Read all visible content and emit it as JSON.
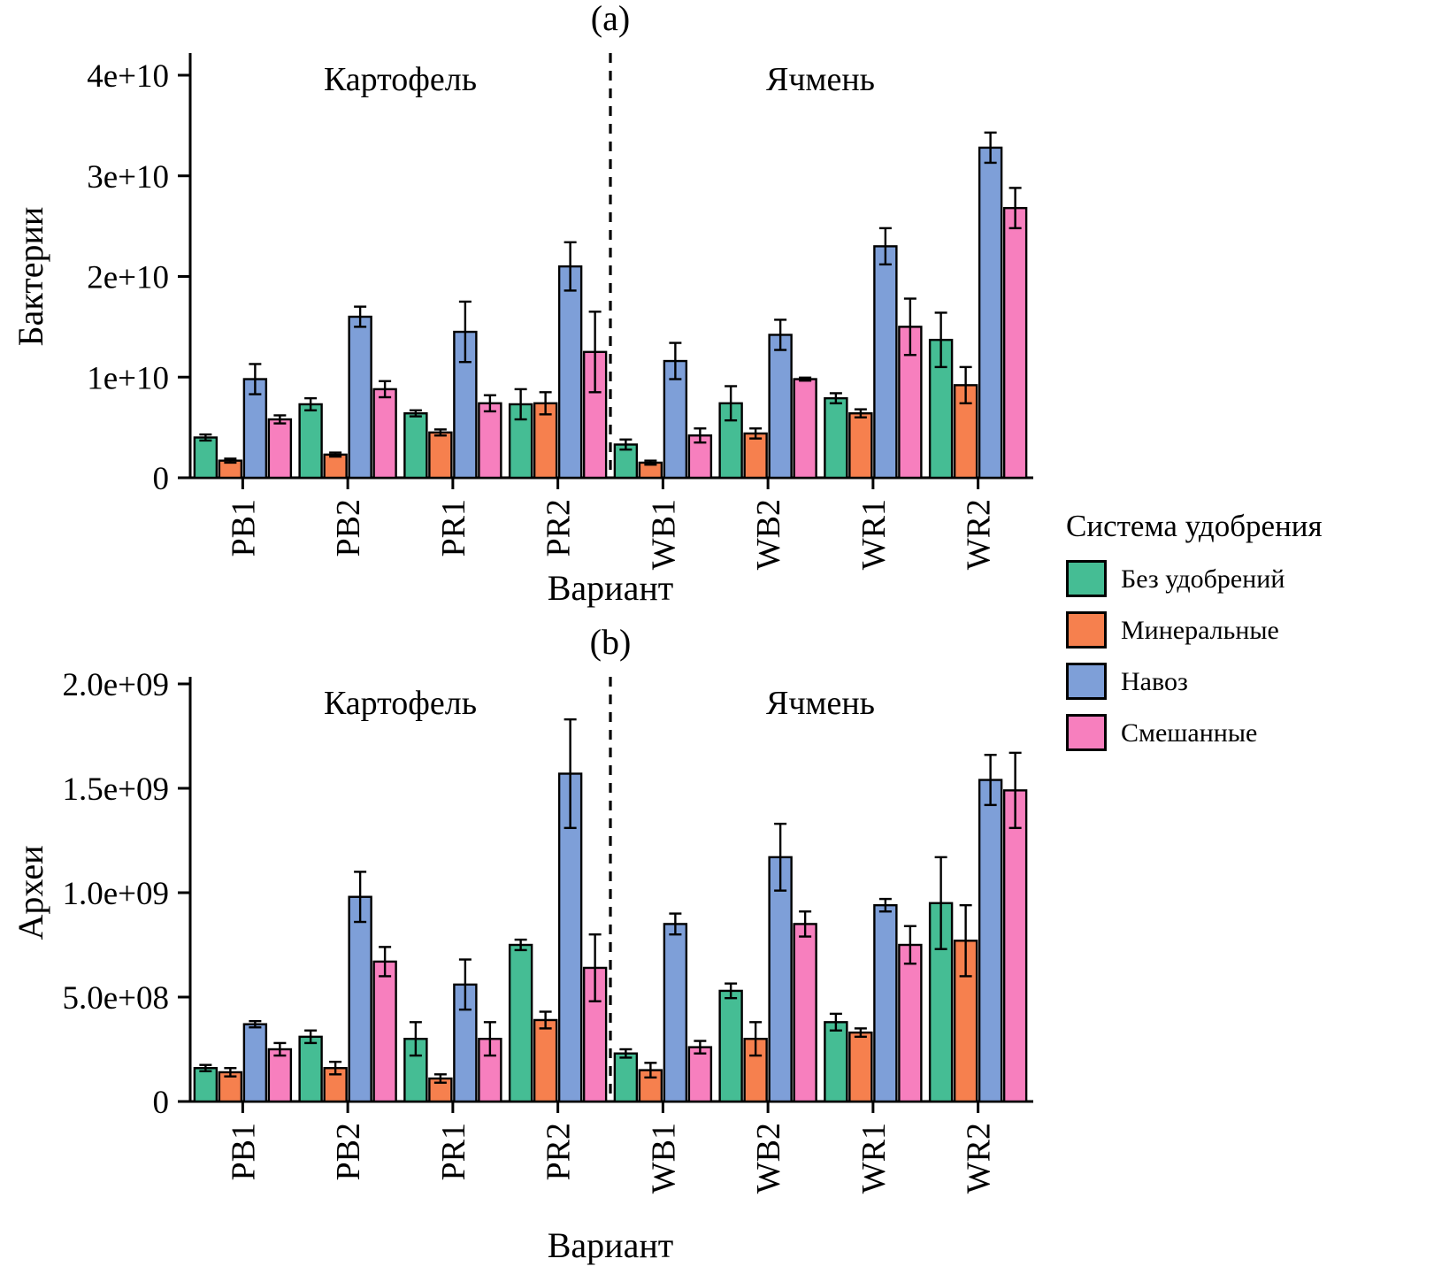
{
  "legend": {
    "title": "Система удобрения",
    "items": [
      {
        "label": "Без удобрений",
        "color": "#45BD94"
      },
      {
        "label": "Минеральные",
        "color": "#F6804E"
      },
      {
        "label": "Навоз",
        "color": "#7E9FD8"
      },
      {
        "label": "Смешанные",
        "color": "#F77FBE"
      }
    ]
  },
  "chart_data": [
    {
      "type": "bar",
      "title": "(a)",
      "ylabel": "Бактерии",
      "xlabel": "Вариант",
      "sections": [
        {
          "label": "Картофель"
        },
        {
          "label": "Ячмень"
        }
      ],
      "categories": [
        "PB1",
        "PB2",
        "PR1",
        "PR2",
        "WB1",
        "WB2",
        "WR1",
        "WR2"
      ],
      "ylim": [
        0,
        40000000000.0
      ],
      "yticks": [
        0,
        10000000000.0,
        20000000000.0,
        30000000000.0,
        40000000000.0
      ],
      "ytick_labels": [
        "0",
        "1e+10",
        "2e+10",
        "3e+10",
        "4e+10"
      ],
      "grid": false,
      "legend_position": "right",
      "series": [
        {
          "name": "Без удобрений",
          "values": [
            4000000000.0,
            7300000000.0,
            6400000000.0,
            7300000000.0,
            3300000000.0,
            7400000000.0,
            7900000000.0,
            13700000000.0
          ],
          "errors": [
            300000000.0,
            600000000.0,
            300000000.0,
            1500000000.0,
            500000000.0,
            1700000000.0,
            500000000.0,
            2700000000.0
          ]
        },
        {
          "name": "Минеральные",
          "values": [
            1700000000.0,
            2300000000.0,
            4500000000.0,
            7400000000.0,
            1500000000.0,
            4400000000.0,
            6400000000.0,
            9200000000.0
          ],
          "errors": [
            200000000.0,
            200000000.0,
            300000000.0,
            1100000000.0,
            200000000.0,
            500000000.0,
            400000000.0,
            1800000000.0
          ]
        },
        {
          "name": "Навоз",
          "values": [
            9800000000.0,
            16000000000.0,
            14500000000.0,
            21000000000.0,
            11600000000.0,
            14200000000.0,
            23000000000.0,
            32800000000.0
          ],
          "errors": [
            1500000000.0,
            1000000000.0,
            3000000000.0,
            2400000000.0,
            1800000000.0,
            1500000000.0,
            1800000000.0,
            1500000000.0
          ]
        },
        {
          "name": "Смешанные",
          "values": [
            5800000000.0,
            8800000000.0,
            7400000000.0,
            12500000000.0,
            4200000000.0,
            9800000000.0,
            15000000000.0,
            26800000000.0
          ],
          "errors": [
            400000000.0,
            800000000.0,
            800000000.0,
            4000000000.0,
            700000000.0,
            150000000.0,
            2800000000.0,
            2000000000.0
          ]
        }
      ]
    },
    {
      "type": "bar",
      "title": "(b)",
      "ylabel": "Археи",
      "xlabel": "Вариант",
      "sections": [
        {
          "label": "Картофель"
        },
        {
          "label": "Ячмень"
        }
      ],
      "categories": [
        "PB1",
        "PB2",
        "PR1",
        "PR2",
        "WB1",
        "WB2",
        "WR1",
        "WR2"
      ],
      "ylim": [
        0,
        2000000000.0
      ],
      "yticks": [
        0,
        500000000.0,
        1000000000.0,
        1500000000.0,
        2000000000.0
      ],
      "ytick_labels": [
        "0",
        "5.0e+08",
        "1.0e+09",
        "1.5e+09",
        "2.0e+09"
      ],
      "grid": false,
      "legend_position": "right",
      "series": [
        {
          "name": "Без удобрений",
          "values": [
            160000000.0,
            310000000.0,
            300000000.0,
            750000000.0,
            230000000.0,
            530000000.0,
            380000000.0,
            950000000.0
          ],
          "errors": [
            15000000.0,
            30000000.0,
            80000000.0,
            25000000.0,
            20000000.0,
            35000000.0,
            40000000.0,
            220000000.0
          ]
        },
        {
          "name": "Минеральные",
          "values": [
            140000000.0,
            160000000.0,
            110000000.0,
            390000000.0,
            150000000.0,
            300000000.0,
            330000000.0,
            770000000.0
          ],
          "errors": [
            20000000.0,
            30000000.0,
            20000000.0,
            40000000.0,
            35000000.0,
            80000000.0,
            20000000.0,
            170000000.0
          ]
        },
        {
          "name": "Навоз",
          "values": [
            370000000.0,
            980000000.0,
            560000000.0,
            1570000000.0,
            850000000.0,
            1170000000.0,
            940000000.0,
            1540000000.0
          ],
          "errors": [
            15000000.0,
            120000000.0,
            120000000.0,
            260000000.0,
            50000000.0,
            160000000.0,
            30000000.0,
            120000000.0
          ]
        },
        {
          "name": "Смешанные",
          "values": [
            250000000.0,
            670000000.0,
            300000000.0,
            640000000.0,
            260000000.0,
            850000000.0,
            750000000.0,
            1490000000.0
          ],
          "errors": [
            30000000.0,
            70000000.0,
            80000000.0,
            160000000.0,
            30000000.0,
            60000000.0,
            90000000.0,
            180000000.0
          ]
        }
      ]
    }
  ]
}
